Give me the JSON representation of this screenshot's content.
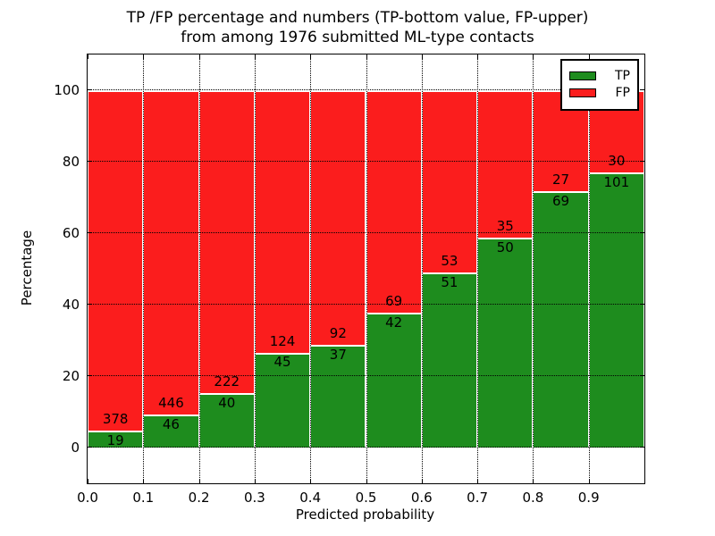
{
  "title": {
    "line1": "TP /FP percentage and numbers (TP-bottom value, FP-upper)",
    "line2": "from among 1976 submitted ML-type contacts"
  },
  "chart_data": {
    "type": "bar",
    "subtype": "percent-stacked",
    "total_contacts": 1976,
    "categories": [
      "0.0",
      "0.1",
      "0.2",
      "0.3",
      "0.4",
      "0.5",
      "0.6",
      "0.7",
      "0.8",
      "0.9"
    ],
    "bin_width": 0.1,
    "series": [
      {
        "name": "TP",
        "color": "#1e8c1e",
        "values": [
          19,
          46,
          40,
          45,
          37,
          42,
          51,
          50,
          69,
          101
        ]
      },
      {
        "name": "FP",
        "color": "#fb1d1d",
        "values": [
          378,
          446,
          222,
          124,
          92,
          69,
          53,
          35,
          27,
          30
        ]
      }
    ],
    "tp_percent": [
      4.8,
      9.3,
      15.3,
      26.6,
      28.7,
      37.8,
      49.0,
      58.8,
      71.9,
      77.1
    ],
    "xlabel": "Predicted probability",
    "ylabel": "Percentage",
    "xlim": [
      0.0,
      1.0
    ],
    "ylim": [
      -10,
      110
    ],
    "xticks": [
      "0.0",
      "0.1",
      "0.2",
      "0.3",
      "0.4",
      "0.5",
      "0.6",
      "0.7",
      "0.8",
      "0.9"
    ],
    "yticks": [
      0,
      20,
      40,
      60,
      80,
      100
    ],
    "grid": "dotted-black-over-bars",
    "legend": {
      "position": "upper right",
      "entries": [
        {
          "label": "TP",
          "color": "#1e8c1e"
        },
        {
          "label": "FP",
          "color": "#fb1d1d"
        }
      ]
    }
  }
}
